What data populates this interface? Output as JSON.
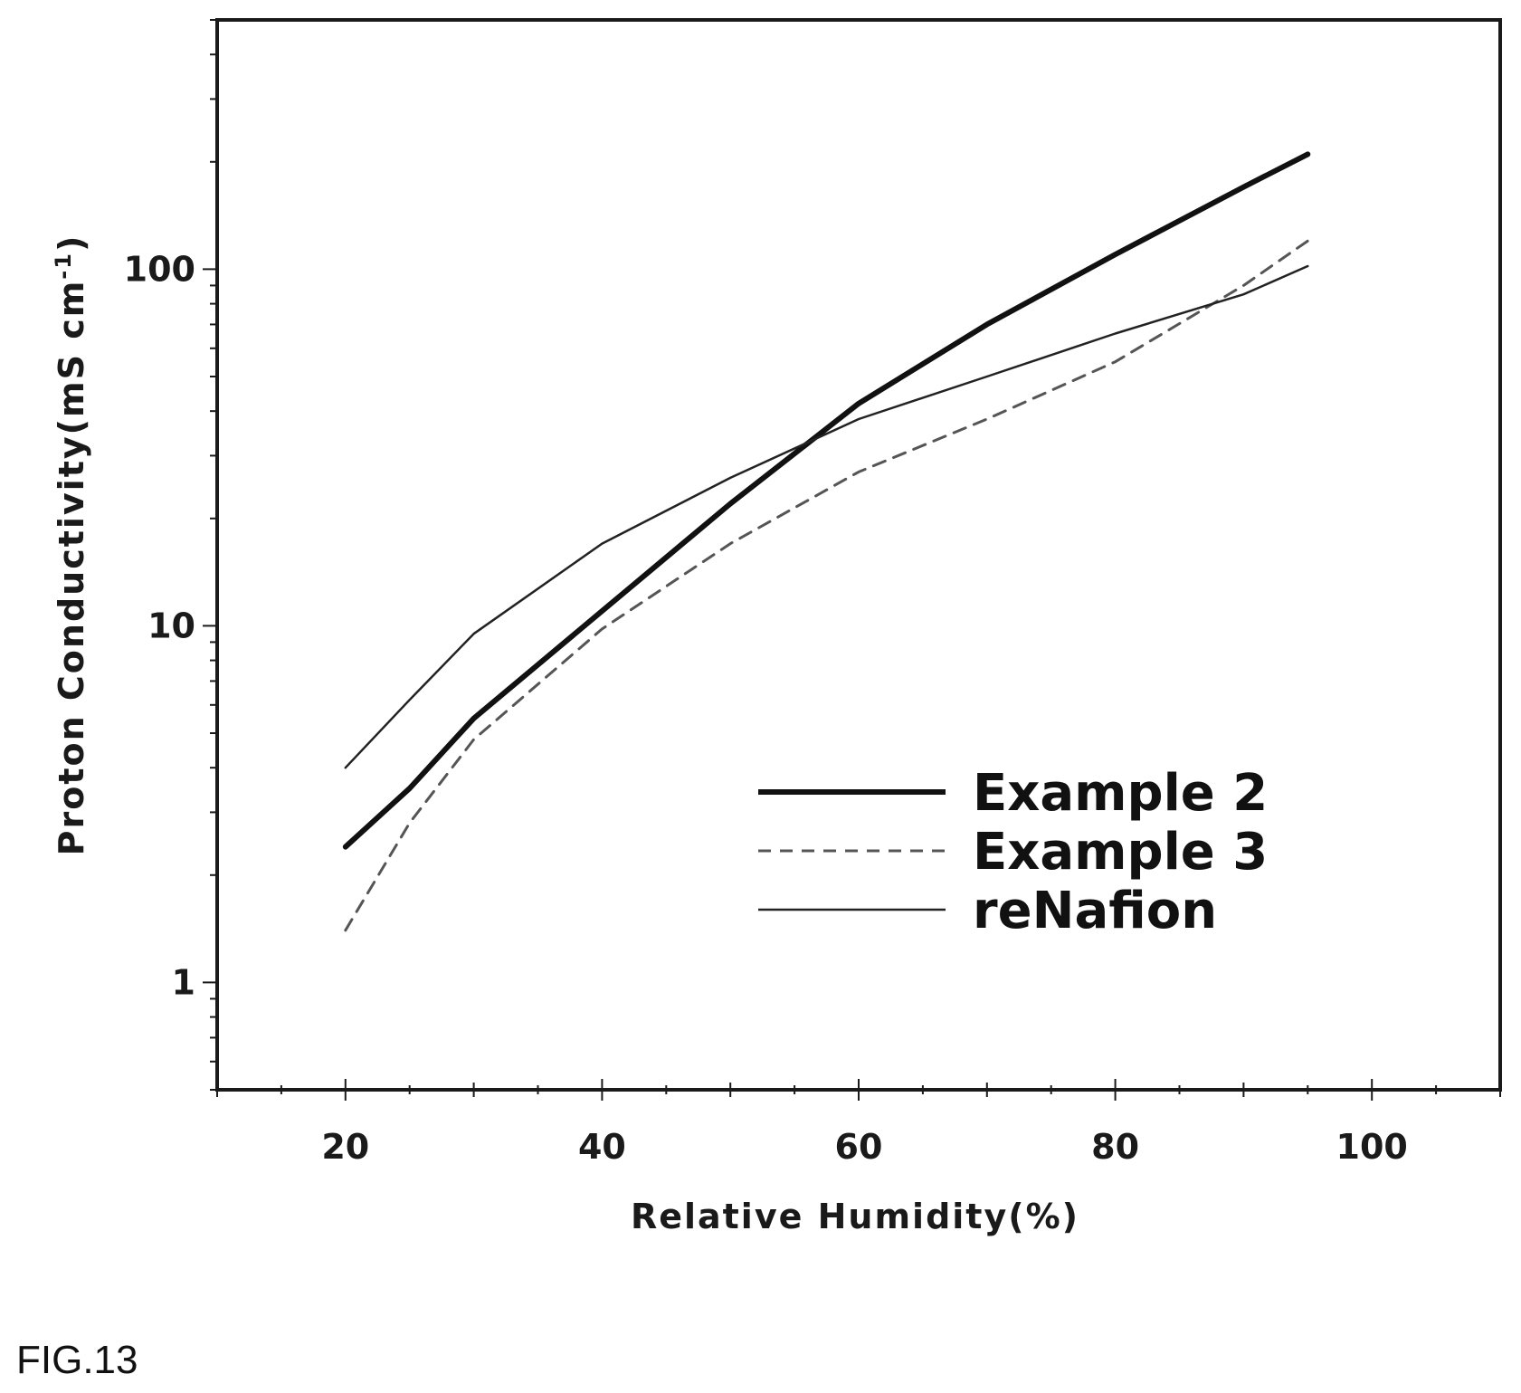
{
  "figure_label": "FIG.13",
  "chart_data": {
    "type": "line",
    "xlabel": "Relative Humidity(%)",
    "ylabel": "Proton Conductivity(mS cm",
    "ylabel_superscript": "-1",
    "ylabel_close": ")",
    "xlim": [
      10,
      110
    ],
    "ylim": [
      0.5,
      500
    ],
    "yscale": "log",
    "x_ticks": [
      20,
      40,
      60,
      80,
      100
    ],
    "x_tick_labels": [
      "20",
      "40",
      "60",
      "80",
      "100"
    ],
    "y_ticks": [
      1,
      10,
      100
    ],
    "y_tick_labels": [
      "1",
      "10",
      "100"
    ],
    "grid": false,
    "legend_position": "lower-right",
    "series": [
      {
        "name": "Example 2",
        "style": "solid-thick",
        "color": "#111111",
        "x": [
          20,
          25,
          30,
          40,
          50,
          60,
          70,
          80,
          90,
          95
        ],
        "y": [
          2.4,
          3.5,
          5.5,
          11,
          22,
          42,
          70,
          110,
          170,
          210
        ]
      },
      {
        "name": "Example 3",
        "style": "dashed",
        "color": "#555555",
        "x": [
          20,
          25,
          30,
          40,
          50,
          60,
          70,
          80,
          90,
          95
        ],
        "y": [
          1.4,
          2.8,
          4.8,
          9.8,
          17,
          27,
          38,
          55,
          90,
          120
        ]
      },
      {
        "name": "reNafion",
        "style": "solid-thin",
        "color": "#222222",
        "x": [
          20,
          25,
          30,
          40,
          50,
          60,
          70,
          80,
          90,
          95
        ],
        "y": [
          4.0,
          6.2,
          9.5,
          17,
          26,
          38,
          50,
          66,
          85,
          102
        ]
      }
    ]
  }
}
